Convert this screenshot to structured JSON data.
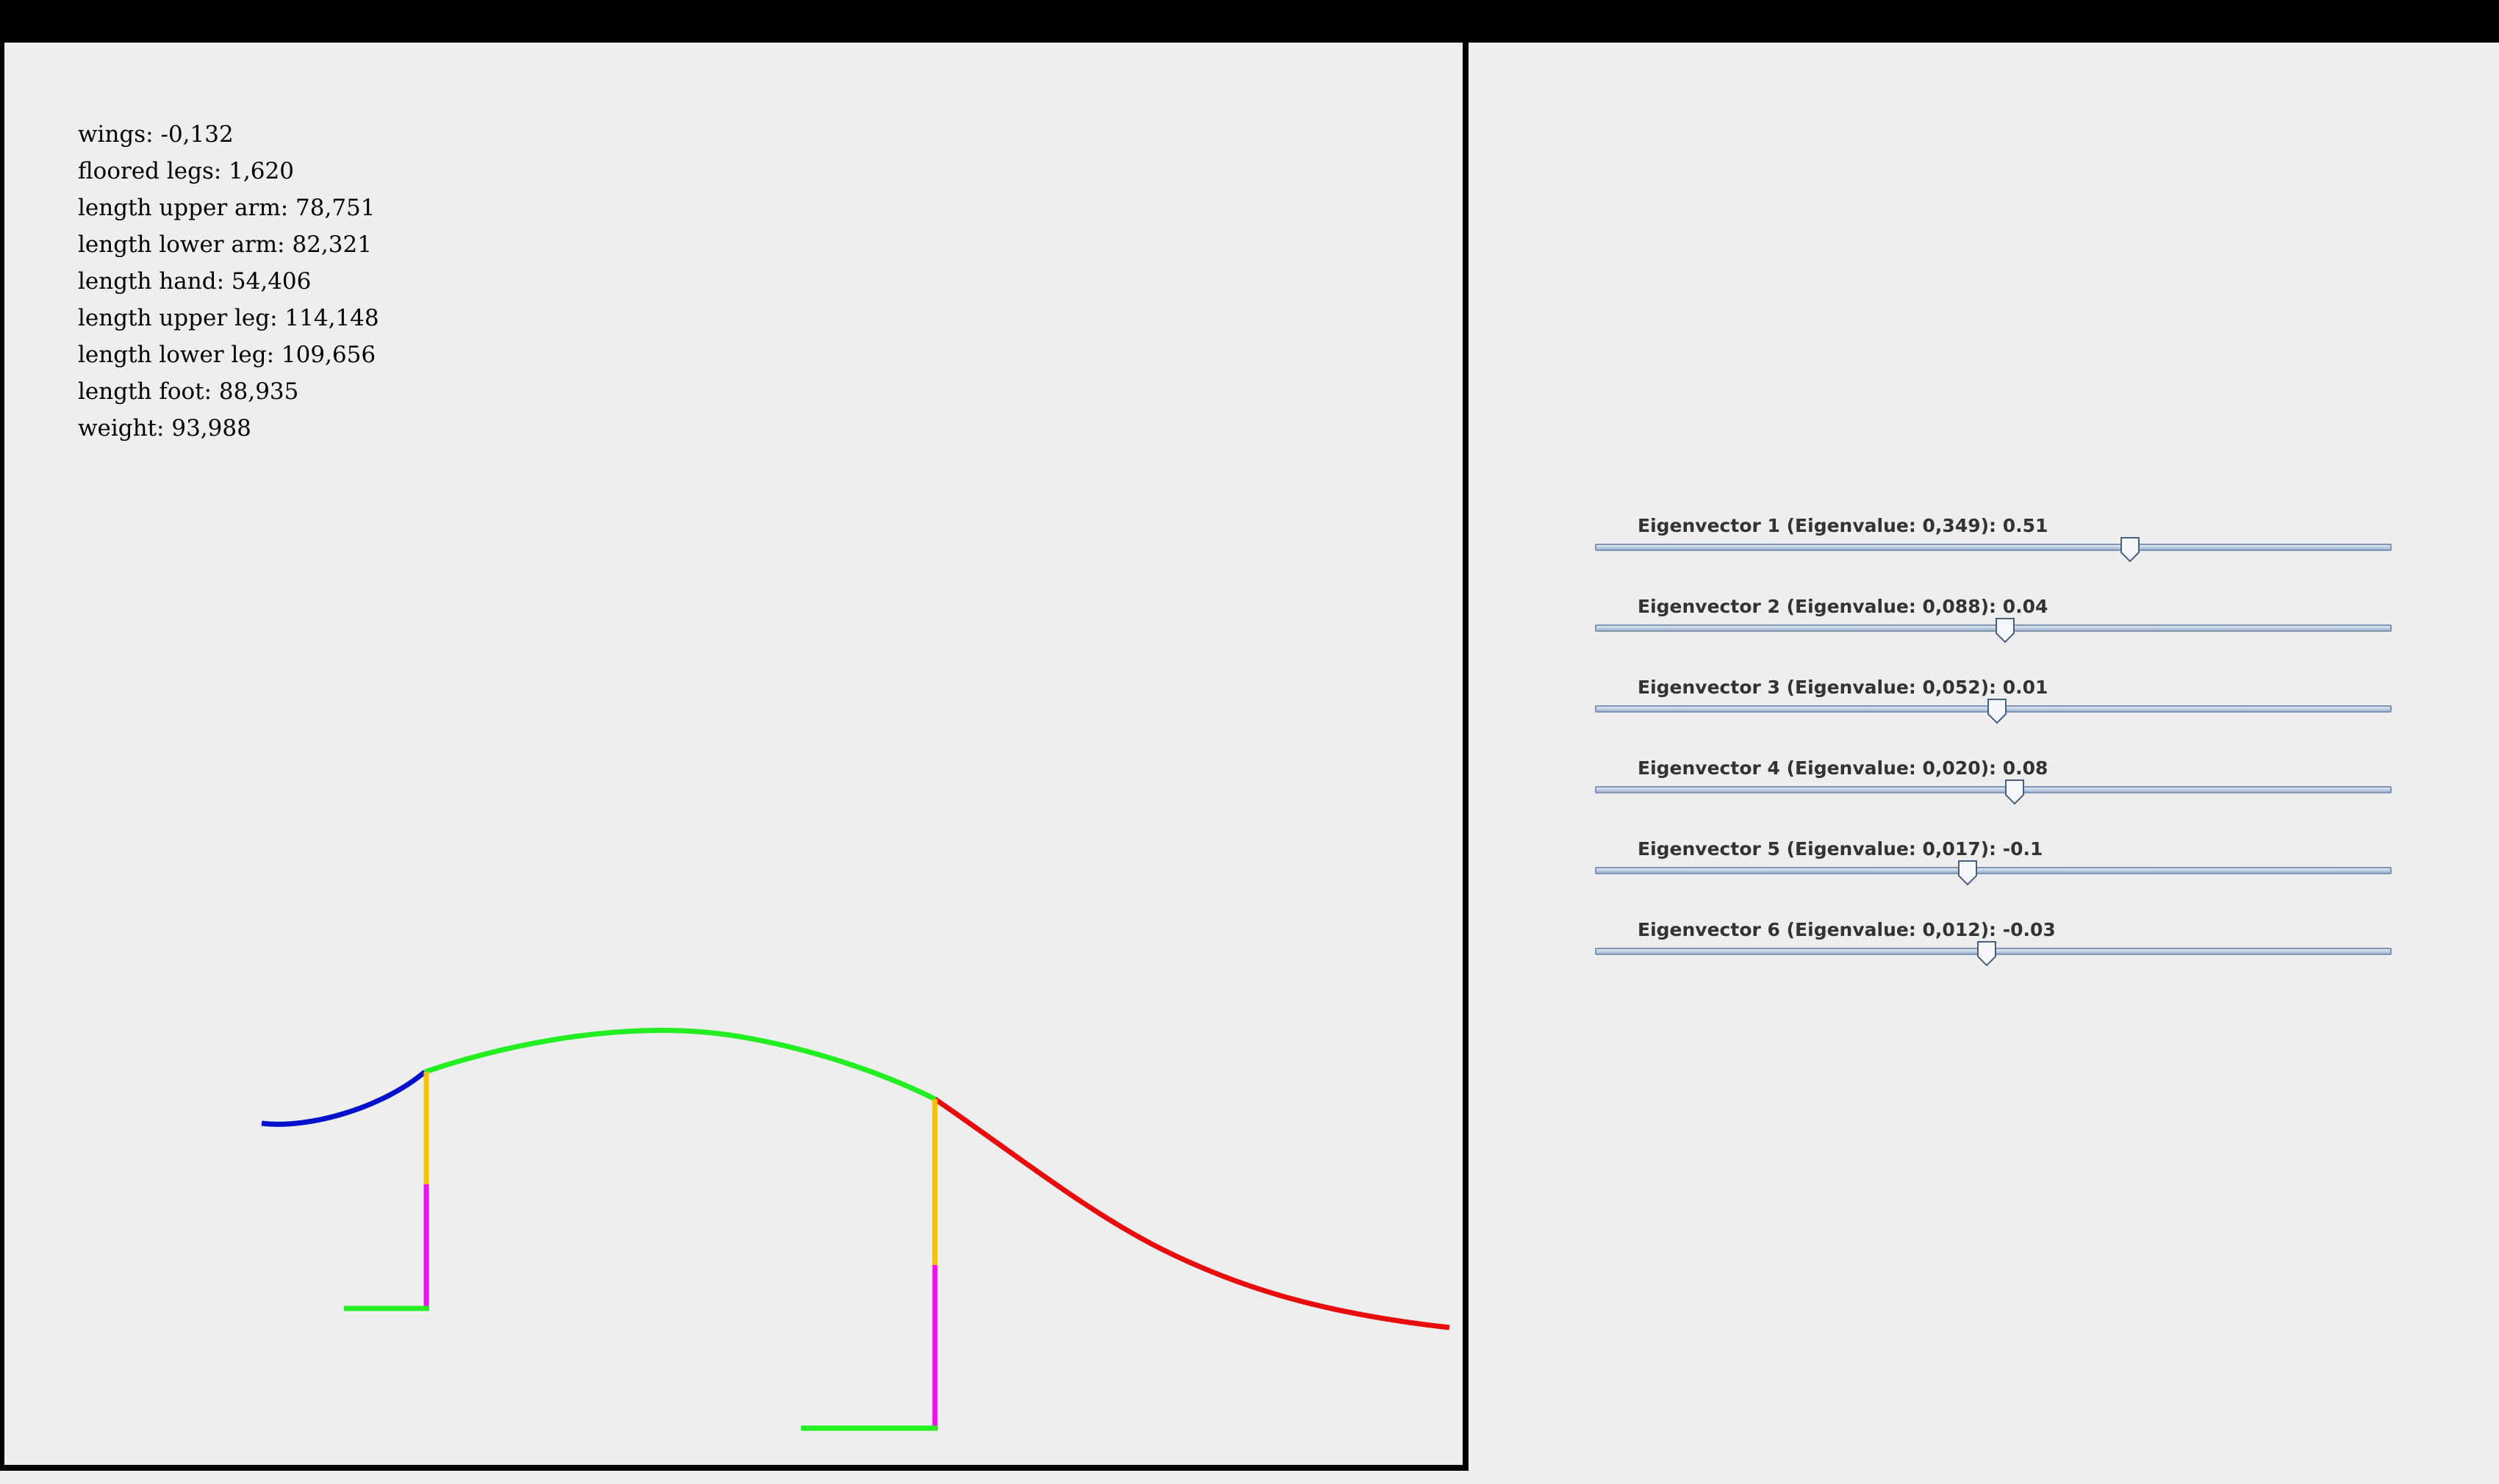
{
  "window": {
    "title": ""
  },
  "stats": [
    {
      "label": "wings",
      "value": "-0,132",
      "text": "wings: -0,132"
    },
    {
      "label": "floored legs",
      "value": "1,620",
      "text": "floored legs: 1,620"
    },
    {
      "label": "length upper arm",
      "value": "78,751",
      "text": "length upper arm: 78,751"
    },
    {
      "label": "length lower arm",
      "value": "82,321",
      "text": "length lower arm: 82,321"
    },
    {
      "label": "length hand",
      "value": "54,406",
      "text": "length hand: 54,406"
    },
    {
      "label": "length upper leg",
      "value": "114,148",
      "text": "length upper leg: 114,148"
    },
    {
      "label": "length lower leg",
      "value": "109,656",
      "text": "length lower leg: 109,656"
    },
    {
      "label": "length foot",
      "value": "88,935",
      "text": "length foot: 88,935"
    },
    {
      "label": "weight",
      "value": "93,988",
      "text": "weight: 93,988"
    }
  ],
  "sliders": [
    {
      "text": "Eigenvector 1 (Eigenvalue: 0,349): 0.51",
      "eigenvalue": "0,349",
      "value": 0.51,
      "position_fraction": 0.672
    },
    {
      "text": "Eigenvector 2 (Eigenvalue: 0,088): 0.04",
      "eigenvalue": "0,088",
      "value": 0.04,
      "position_fraction": 0.515
    },
    {
      "text": "Eigenvector 3 (Eigenvalue: 0,052): 0.01",
      "eigenvalue": "0,052",
      "value": 0.01,
      "position_fraction": 0.505
    },
    {
      "text": "Eigenvector 4 (Eigenvalue: 0,020): 0.08",
      "eigenvalue": "0,020",
      "value": 0.08,
      "position_fraction": 0.527
    },
    {
      "text": "Eigenvector 5 (Eigenvalue: 0,017): -0.1",
      "eigenvalue": "0,017",
      "value": -0.1,
      "position_fraction": 0.468
    },
    {
      "text": "Eigenvector 6 (Eigenvalue: 0,012): -0.03",
      "eigenvalue": "0,012",
      "value": -0.03,
      "position_fraction": 0.492
    }
  ],
  "colors": {
    "background": "#eeeeee",
    "border": "#000000",
    "neck_head": "#0011cc",
    "body": "#22ee22",
    "upper_leg": "#f5c400",
    "lower_leg": "#ee11ee",
    "foot": "#22ee22",
    "tail": "#e80c0c",
    "slider_track": "#9fb6d2",
    "slider_label": "#333333"
  }
}
